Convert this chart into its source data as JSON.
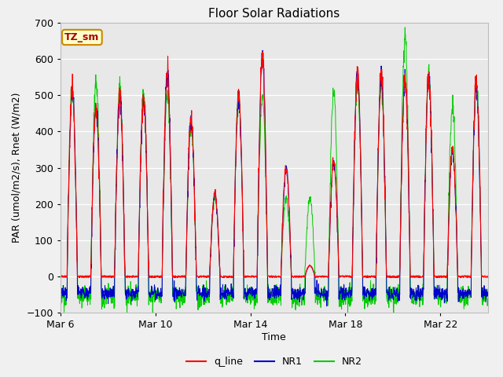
{
  "title": "Floor Solar Radiations",
  "xlabel": "Time",
  "ylabel": "PAR (umol/m2/s), Rnet (W/m2)",
  "ylim": [
    -100,
    700
  ],
  "yticks": [
    -100,
    0,
    100,
    200,
    300,
    400,
    500,
    600,
    700
  ],
  "fig_bg_color": "#f0f0f0",
  "plot_bg_color": "#e8e8e8",
  "annotation_text": "TZ_sm",
  "annotation_bg": "#ffffcc",
  "annotation_border": "#cc8800",
  "annotation_text_color": "#aa0000",
  "line_colors": {
    "q_line": "#ff0000",
    "NR1": "#0000cc",
    "NR2": "#00cc00"
  },
  "legend_labels": [
    "q_line",
    "NR1",
    "NR2"
  ],
  "x_tick_labels": [
    "Mar 6",
    "Mar 10",
    "Mar 14",
    "Mar 18",
    "Mar 22"
  ],
  "n_days": 18,
  "pts_per_day": 96
}
